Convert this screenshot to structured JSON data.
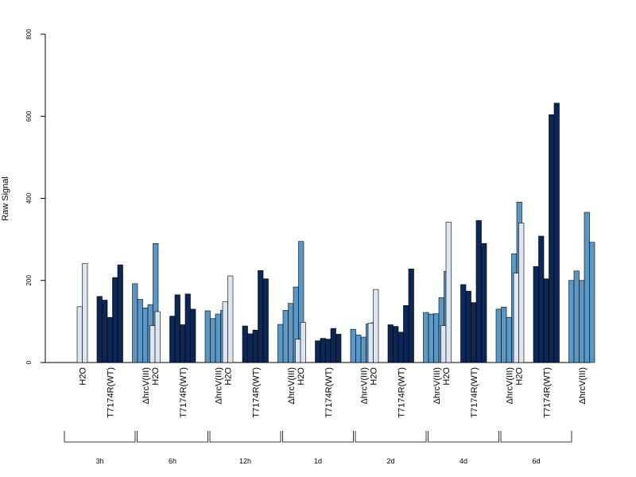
{
  "chart_data": {
    "type": "bar",
    "title": "",
    "xlabel": "",
    "ylabel": "Raw Signal",
    "ylim": [
      0,
      800
    ],
    "yticks": [
      0,
      200,
      400,
      600,
      800
    ],
    "grid": false,
    "legend": "none",
    "timepoints": [
      "3h",
      "6h",
      "12h",
      "1d",
      "2d",
      "4d",
      "6d"
    ],
    "treatments": [
      {
        "label": "H2O",
        "color": "#dce6f2"
      },
      {
        "label": "T7174R(WT)",
        "color": "#0c2656"
      },
      {
        "label": "ΔhrcV(III)",
        "color": "#5c98c6"
      }
    ],
    "groups": [
      {
        "timepoint": "3h",
        "values": [
          [
            136,
            241
          ],
          [
            161,
            152,
            110,
            207,
            238
          ],
          [
            192,
            154,
            133,
            141,
            290
          ]
        ]
      },
      {
        "timepoint": "6h",
        "values": [
          [
            90,
            124
          ],
          [
            113,
            165,
            92,
            167,
            130
          ],
          [
            126,
            107,
            118,
            127,
            137
          ]
        ]
      },
      {
        "timepoint": "12h",
        "values": [
          [
            148,
            211
          ],
          [
            89,
            70,
            79,
            224,
            204
          ],
          [
            93,
            127,
            144,
            184,
            295
          ]
        ]
      },
      {
        "timepoint": "1d",
        "values": [
          [
            57,
            98
          ],
          [
            53,
            59,
            57,
            83,
            69
          ],
          [
            81,
            67,
            62,
            94,
            97
          ]
        ]
      },
      {
        "timepoint": "2d",
        "values": [
          [
            96,
            178
          ],
          [
            92,
            88,
            74,
            139,
            228
          ],
          [
            122,
            118,
            119,
            158,
            222
          ]
        ]
      },
      {
        "timepoint": "4d",
        "values": [
          [
            90,
            342
          ],
          [
            190,
            174,
            146,
            346,
            290
          ],
          [
            130,
            135,
            110,
            265,
            391
          ]
        ]
      },
      {
        "timepoint": "6d",
        "values": [
          [
            218,
            340
          ],
          [
            234,
            308,
            204,
            604,
            632
          ],
          [
            200,
            223,
            200,
            366,
            293
          ]
        ]
      }
    ]
  }
}
